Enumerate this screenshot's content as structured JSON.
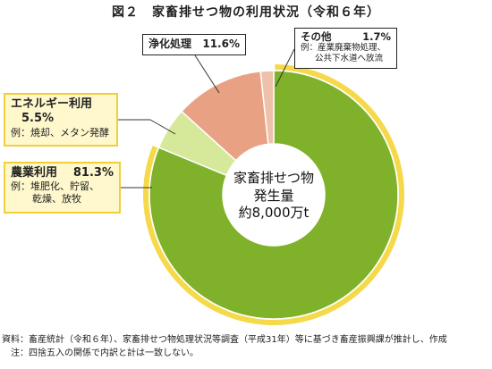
{
  "title": "図２　家畜排せつ物の利用状況（令和６年）",
  "center": {
    "line1": "家畜排せつ物",
    "line2": "発生量",
    "line3": "約8,000万t"
  },
  "callouts": {
    "agriculture": {
      "label": "農業利用",
      "pct": "81.3%",
      "sub1": "例：堆肥化、貯留、",
      "sub2": "乾燥、放牧"
    },
    "energy": {
      "label": "エネルギー利用",
      "pct": "5.5%",
      "sub": "例：焼却、メタン発酵"
    },
    "purification": {
      "label": "浄化処理",
      "pct": "11.6%"
    },
    "other": {
      "label": "その他",
      "pct": "1.7%",
      "sub1": "例：産業廃棄物処理、",
      "sub2": "公共下水道へ放流"
    }
  },
  "notes": {
    "source": "資料：畜産統計（令和６年）、家畜排せつ物処理状況等調査（平成31年）等に基づき畜産振興課が推計し、作成",
    "note": "　注：四捨五入の関係で内訳と計は一致しない。"
  },
  "chart_data": {
    "type": "pie",
    "style": "donut",
    "title": "図２　家畜排せつ物の利用状況（令和６年）",
    "slices": [
      {
        "label": "農業利用",
        "value": 81.3,
        "color": "#7fb12a"
      },
      {
        "label": "エネルギー利用",
        "value": 5.5,
        "color": "#d6e89a"
      },
      {
        "label": "浄化処理",
        "value": 11.6,
        "color": "#e8a283"
      },
      {
        "label": "その他",
        "value": 1.7,
        "color": "#efc1aa"
      }
    ],
    "unit": "%",
    "highlight_color": "#f5d94a"
  }
}
